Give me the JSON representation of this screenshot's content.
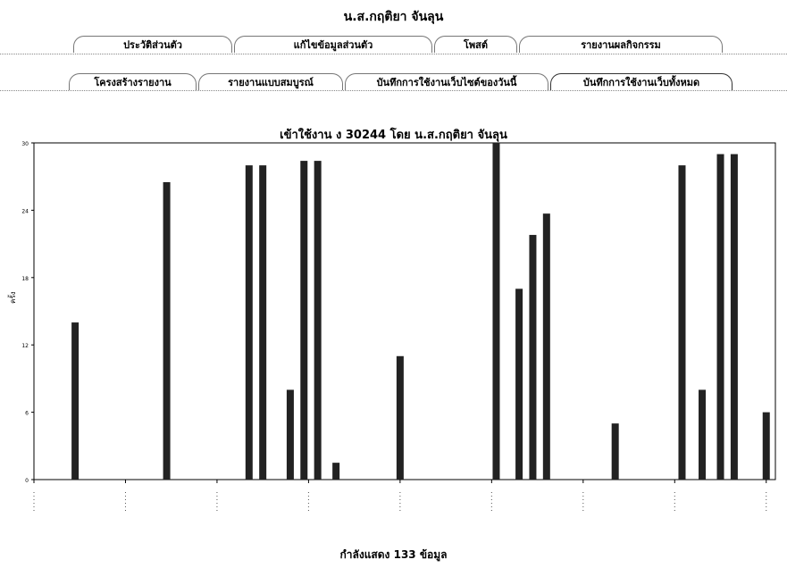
{
  "user_name": "น.ส.กฤติยา จันลุน",
  "tabs_row1": [
    {
      "label": "ประวัติส่วนตัว"
    },
    {
      "label": "แก้ไขข้อมูลส่วนตัว"
    },
    {
      "label": "โพสต์"
    },
    {
      "label": "รายงานผลกิจกรรม"
    }
  ],
  "tabs_row2": [
    {
      "label": "โครงสร้างรายงาน"
    },
    {
      "label": "รายงานแบบสมบูรณ์"
    },
    {
      "label": "บันทึกการใช้งานเว็บไซต์ของวันนี้"
    },
    {
      "label": "บันทึกการใช้งานเว็บทั้งหมด"
    }
  ],
  "footer_text": "กำลังแสดง 133 ข้อมูล",
  "colors": {
    "bar": "#222222",
    "axis": "#000000"
  },
  "chart_data": {
    "type": "bar",
    "title": "เข้าใช้งาน ง 30244 โดย น.ส.กฤติยา จันลุน",
    "ylabel": "ครั้ง",
    "ylim": [
      0,
      30
    ],
    "yticks": [
      0,
      6,
      12,
      18,
      24,
      30
    ],
    "xticks": [
      "",
      "",
      "",
      "",
      "",
      "",
      "",
      "",
      ""
    ],
    "values": [
      {
        "x": 0.45,
        "y": 14
      },
      {
        "x": 1.45,
        "y": 26.5
      },
      {
        "x": 2.35,
        "y": 28
      },
      {
        "x": 2.5,
        "y": 28
      },
      {
        "x": 2.8,
        "y": 8
      },
      {
        "x": 2.95,
        "y": 28.4
      },
      {
        "x": 3.1,
        "y": 28.4
      },
      {
        "x": 3.3,
        "y": 1.5
      },
      {
        "x": 4.0,
        "y": 11
      },
      {
        "x": 5.05,
        "y": 30
      },
      {
        "x": 5.3,
        "y": 17
      },
      {
        "x": 5.45,
        "y": 21.8
      },
      {
        "x": 5.6,
        "y": 23.7
      },
      {
        "x": 6.35,
        "y": 5
      },
      {
        "x": 7.08,
        "y": 28
      },
      {
        "x": 7.3,
        "y": 8
      },
      {
        "x": 7.5,
        "y": 29
      },
      {
        "x": 7.65,
        "y": 29
      },
      {
        "x": 8.0,
        "y": 6
      }
    ],
    "xlim": [
      0,
      8.1
    ]
  }
}
